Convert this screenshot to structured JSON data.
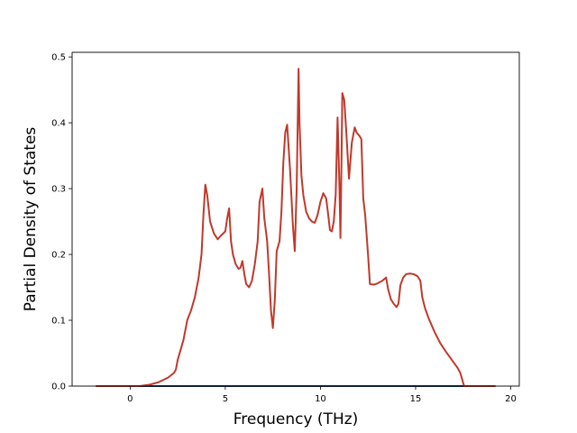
{
  "chart_data": {
    "type": "line",
    "title": "",
    "xlabel": "Frequency (THz)",
    "ylabel": "Partial Density of States",
    "xlim": [
      -3.05,
      20.45
    ],
    "ylim": [
      0.0,
      0.507
    ],
    "xticks": [
      0,
      5,
      10,
      15,
      20
    ],
    "yticks": [
      0.0,
      0.1,
      0.2,
      0.3,
      0.4,
      0.5
    ],
    "xtick_labels": [
      "0",
      "5",
      "10",
      "15",
      "20"
    ],
    "ytick_labels": [
      "0.0",
      "0.1",
      "0.2",
      "0.3",
      "0.4",
      "0.5"
    ],
    "grid": false,
    "legend": "none",
    "series": [
      {
        "color": "#1f3a6b",
        "points": [
          [
            -1.8,
            0.0
          ],
          [
            19.2,
            0.0
          ]
        ]
      },
      {
        "color": "#c0392b",
        "points": [
          [
            -1.8,
            0.0
          ],
          [
            0.5,
            0.0
          ],
          [
            1.0,
            0.002
          ],
          [
            1.5,
            0.006
          ],
          [
            2.0,
            0.013
          ],
          [
            2.3,
            0.02
          ],
          [
            2.4,
            0.025
          ],
          [
            2.5,
            0.04
          ],
          [
            2.8,
            0.07
          ],
          [
            3.0,
            0.1
          ],
          [
            3.2,
            0.115
          ],
          [
            3.4,
            0.135
          ],
          [
            3.6,
            0.165
          ],
          [
            3.75,
            0.2
          ],
          [
            3.85,
            0.26
          ],
          [
            3.95,
            0.306
          ],
          [
            4.05,
            0.29
          ],
          [
            4.2,
            0.25
          ],
          [
            4.4,
            0.232
          ],
          [
            4.6,
            0.223
          ],
          [
            4.75,
            0.228
          ],
          [
            5.0,
            0.235
          ],
          [
            5.1,
            0.255
          ],
          [
            5.2,
            0.27
          ],
          [
            5.3,
            0.22
          ],
          [
            5.4,
            0.2
          ],
          [
            5.55,
            0.185
          ],
          [
            5.7,
            0.178
          ],
          [
            5.8,
            0.18
          ],
          [
            5.9,
            0.19
          ],
          [
            6.0,
            0.17
          ],
          [
            6.1,
            0.155
          ],
          [
            6.25,
            0.15
          ],
          [
            6.4,
            0.16
          ],
          [
            6.55,
            0.185
          ],
          [
            6.7,
            0.22
          ],
          [
            6.8,
            0.28
          ],
          [
            6.95,
            0.3
          ],
          [
            7.05,
            0.255
          ],
          [
            7.2,
            0.22
          ],
          [
            7.3,
            0.17
          ],
          [
            7.4,
            0.115
          ],
          [
            7.5,
            0.088
          ],
          [
            7.6,
            0.13
          ],
          [
            7.7,
            0.205
          ],
          [
            7.85,
            0.22
          ],
          [
            7.95,
            0.265
          ],
          [
            8.05,
            0.34
          ],
          [
            8.15,
            0.385
          ],
          [
            8.25,
            0.397
          ],
          [
            8.4,
            0.33
          ],
          [
            8.55,
            0.245
          ],
          [
            8.65,
            0.205
          ],
          [
            8.75,
            0.3
          ],
          [
            8.85,
            0.482
          ],
          [
            8.9,
            0.4
          ],
          [
            9.0,
            0.32
          ],
          [
            9.1,
            0.29
          ],
          [
            9.25,
            0.265
          ],
          [
            9.4,
            0.255
          ],
          [
            9.55,
            0.25
          ],
          [
            9.7,
            0.248
          ],
          [
            9.85,
            0.26
          ],
          [
            10.0,
            0.28
          ],
          [
            10.15,
            0.293
          ],
          [
            10.3,
            0.285
          ],
          [
            10.4,
            0.262
          ],
          [
            10.5,
            0.237
          ],
          [
            10.6,
            0.235
          ],
          [
            10.7,
            0.25
          ],
          [
            10.8,
            0.29
          ],
          [
            10.9,
            0.408
          ],
          [
            11.0,
            0.3
          ],
          [
            11.05,
            0.225
          ],
          [
            11.1,
            0.33
          ],
          [
            11.15,
            0.445
          ],
          [
            11.25,
            0.435
          ],
          [
            11.35,
            0.39
          ],
          [
            11.5,
            0.315
          ],
          [
            11.65,
            0.37
          ],
          [
            11.8,
            0.393
          ],
          [
            11.9,
            0.385
          ],
          [
            12.05,
            0.38
          ],
          [
            12.15,
            0.375
          ],
          [
            12.25,
            0.285
          ],
          [
            12.35,
            0.26
          ],
          [
            12.5,
            0.2
          ],
          [
            12.6,
            0.155
          ],
          [
            12.8,
            0.154
          ],
          [
            13.0,
            0.156
          ],
          [
            13.25,
            0.16
          ],
          [
            13.45,
            0.165
          ],
          [
            13.55,
            0.148
          ],
          [
            13.7,
            0.132
          ],
          [
            13.85,
            0.125
          ],
          [
            14.0,
            0.12
          ],
          [
            14.1,
            0.125
          ],
          [
            14.2,
            0.153
          ],
          [
            14.35,
            0.165
          ],
          [
            14.5,
            0.17
          ],
          [
            14.7,
            0.171
          ],
          [
            14.9,
            0.17
          ],
          [
            15.1,
            0.167
          ],
          [
            15.25,
            0.16
          ],
          [
            15.35,
            0.135
          ],
          [
            15.5,
            0.118
          ],
          [
            15.7,
            0.102
          ],
          [
            16.0,
            0.082
          ],
          [
            16.3,
            0.065
          ],
          [
            16.6,
            0.052
          ],
          [
            16.9,
            0.04
          ],
          [
            17.2,
            0.028
          ],
          [
            17.35,
            0.02
          ],
          [
            17.45,
            0.01
          ],
          [
            17.55,
            0.0
          ],
          [
            19.2,
            0.0
          ]
        ]
      }
    ]
  }
}
